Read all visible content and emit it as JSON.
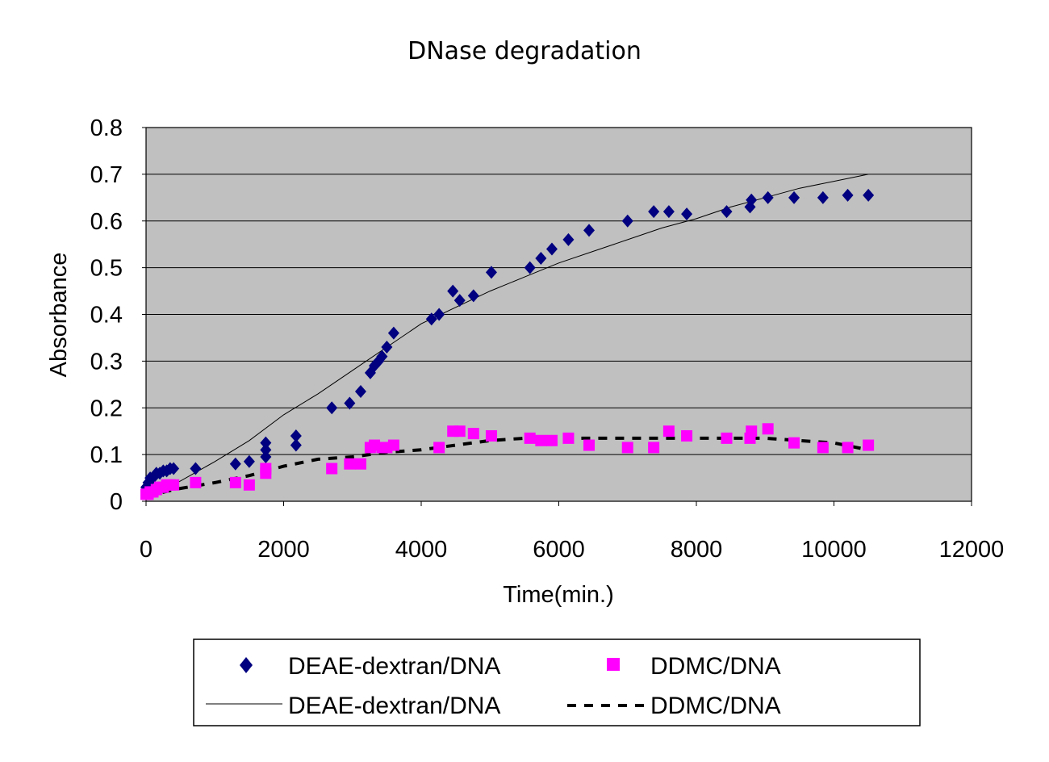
{
  "chart_data": {
    "type": "scatter",
    "title": "DNase degradation",
    "xlabel": "Time(min.)",
    "ylabel": "Absorbance",
    "xlim": [
      0,
      12000
    ],
    "ylim": [
      0,
      0.8
    ],
    "x_ticks": [
      "0",
      "2000",
      "4000",
      "6000",
      "8000",
      "10000",
      "12000"
    ],
    "y_ticks": [
      "0",
      "0.1",
      "0.2",
      "0.3",
      "0.4",
      "0.5",
      "0.6",
      "0.7",
      "0.8"
    ],
    "grid": "horizontal",
    "plot_background": "#c0c0c0",
    "legend_position": "bottom",
    "series": [
      {
        "name": "DEAE-dextran/DNA",
        "kind": "points",
        "marker": "diamond",
        "color": "#000080",
        "points": [
          [
            0,
            0.03
          ],
          [
            30,
            0.04
          ],
          [
            60,
            0.05
          ],
          [
            100,
            0.05
          ],
          [
            150,
            0.06
          ],
          [
            200,
            0.06
          ],
          [
            250,
            0.065
          ],
          [
            300,
            0.065
          ],
          [
            350,
            0.07
          ],
          [
            400,
            0.07
          ],
          [
            720,
            0.07
          ],
          [
            1300,
            0.08
          ],
          [
            1500,
            0.085
          ],
          [
            1740,
            0.095
          ],
          [
            1740,
            0.11
          ],
          [
            1740,
            0.125
          ],
          [
            2180,
            0.12
          ],
          [
            2180,
            0.14
          ],
          [
            2700,
            0.2
          ],
          [
            2960,
            0.21
          ],
          [
            3120,
            0.235
          ],
          [
            3260,
            0.275
          ],
          [
            3320,
            0.29
          ],
          [
            3380,
            0.3
          ],
          [
            3430,
            0.31
          ],
          [
            3500,
            0.33
          ],
          [
            3600,
            0.36
          ],
          [
            4150,
            0.39
          ],
          [
            4260,
            0.4
          ],
          [
            4460,
            0.45
          ],
          [
            4560,
            0.43
          ],
          [
            4760,
            0.44
          ],
          [
            5020,
            0.49
          ],
          [
            5580,
            0.5
          ],
          [
            5740,
            0.52
          ],
          [
            5900,
            0.54
          ],
          [
            6140,
            0.56
          ],
          [
            6440,
            0.58
          ],
          [
            7000,
            0.6
          ],
          [
            7380,
            0.62
          ],
          [
            7600,
            0.62
          ],
          [
            7860,
            0.615
          ],
          [
            8440,
            0.62
          ],
          [
            8780,
            0.63
          ],
          [
            8800,
            0.645
          ],
          [
            9040,
            0.65
          ],
          [
            9420,
            0.65
          ],
          [
            9840,
            0.65
          ],
          [
            10200,
            0.655
          ],
          [
            10500,
            0.655
          ]
        ]
      },
      {
        "name": "DDMC/DNA",
        "kind": "points",
        "marker": "square",
        "color": "#ff00ff",
        "points": [
          [
            0,
            0.015
          ],
          [
            30,
            0.015
          ],
          [
            60,
            0.02
          ],
          [
            100,
            0.02
          ],
          [
            150,
            0.025
          ],
          [
            200,
            0.03
          ],
          [
            250,
            0.03
          ],
          [
            300,
            0.035
          ],
          [
            350,
            0.035
          ],
          [
            400,
            0.035
          ],
          [
            720,
            0.04
          ],
          [
            1300,
            0.04
          ],
          [
            1500,
            0.035
          ],
          [
            1740,
            0.06
          ],
          [
            1740,
            0.07
          ],
          [
            2700,
            0.07
          ],
          [
            2960,
            0.08
          ],
          [
            3120,
            0.08
          ],
          [
            3260,
            0.115
          ],
          [
            3320,
            0.12
          ],
          [
            3430,
            0.115
          ],
          [
            3500,
            0.115
          ],
          [
            3600,
            0.12
          ],
          [
            4260,
            0.115
          ],
          [
            4460,
            0.15
          ],
          [
            4560,
            0.15
          ],
          [
            4760,
            0.145
          ],
          [
            5020,
            0.14
          ],
          [
            5580,
            0.135
          ],
          [
            5740,
            0.13
          ],
          [
            5900,
            0.13
          ],
          [
            6140,
            0.135
          ],
          [
            6440,
            0.12
          ],
          [
            7000,
            0.115
          ],
          [
            7380,
            0.115
          ],
          [
            7600,
            0.15
          ],
          [
            7860,
            0.14
          ],
          [
            8440,
            0.135
          ],
          [
            8780,
            0.135
          ],
          [
            8800,
            0.15
          ],
          [
            9040,
            0.155
          ],
          [
            9420,
            0.125
          ],
          [
            9840,
            0.115
          ],
          [
            10200,
            0.115
          ],
          [
            10500,
            0.12
          ]
        ]
      },
      {
        "name": "DEAE-dextran/DNA",
        "kind": "line",
        "line_style": "solid",
        "color": "#000000",
        "points": [
          [
            0,
            0.02
          ],
          [
            400,
            0.035
          ],
          [
            1000,
            0.085
          ],
          [
            1500,
            0.13
          ],
          [
            2000,
            0.185
          ],
          [
            2500,
            0.23
          ],
          [
            3000,
            0.28
          ],
          [
            3500,
            0.33
          ],
          [
            4000,
            0.38
          ],
          [
            4500,
            0.415
          ],
          [
            5000,
            0.45
          ],
          [
            5500,
            0.48
          ],
          [
            6000,
            0.51
          ],
          [
            6500,
            0.535
          ],
          [
            7000,
            0.56
          ],
          [
            7500,
            0.585
          ],
          [
            8000,
            0.605
          ],
          [
            8500,
            0.63
          ],
          [
            9000,
            0.65
          ],
          [
            9500,
            0.67
          ],
          [
            10000,
            0.685
          ],
          [
            10500,
            0.7
          ]
        ]
      },
      {
        "name": "DDMC/DNA",
        "kind": "line",
        "line_style": "dashed",
        "color": "#000000",
        "points": [
          [
            0,
            0.01
          ],
          [
            400,
            0.025
          ],
          [
            1000,
            0.04
          ],
          [
            1500,
            0.055
          ],
          [
            2000,
            0.075
          ],
          [
            2500,
            0.09
          ],
          [
            3000,
            0.095
          ],
          [
            3500,
            0.105
          ],
          [
            4000,
            0.11
          ],
          [
            4500,
            0.12
          ],
          [
            5000,
            0.13
          ],
          [
            5500,
            0.135
          ],
          [
            6000,
            0.135
          ],
          [
            6500,
            0.135
          ],
          [
            7000,
            0.135
          ],
          [
            7500,
            0.135
          ],
          [
            8000,
            0.135
          ],
          [
            8500,
            0.135
          ],
          [
            9000,
            0.135
          ],
          [
            9500,
            0.13
          ],
          [
            10000,
            0.125
          ],
          [
            10500,
            0.11
          ]
        ]
      }
    ]
  }
}
